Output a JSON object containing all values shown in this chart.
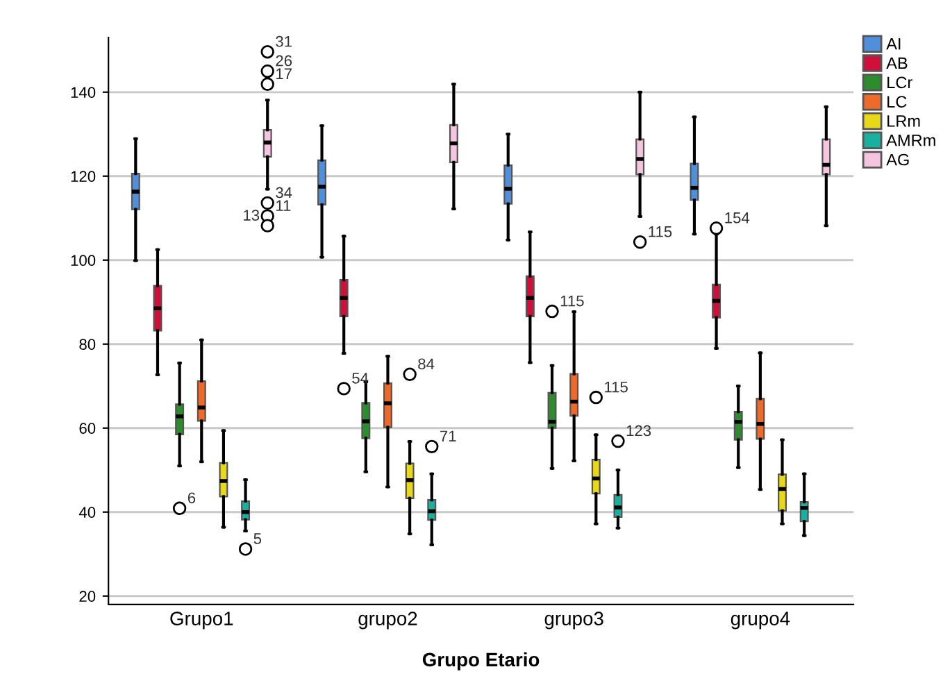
{
  "chart_data": {
    "type": "box",
    "xlabel": "Grupo Etario",
    "categories": [
      "Grupo1",
      "grupo2",
      "grupo3",
      "grupo4"
    ],
    "ylim": [
      18,
      153
    ],
    "yticks": [
      20,
      40,
      60,
      80,
      100,
      120,
      140
    ],
    "grid": "y",
    "legend": "top right",
    "series": [
      {
        "name": "AI",
        "color": "#4f8fdc",
        "boxes": [
          {
            "low": 99.9,
            "q1": 112.1,
            "median": 116.3,
            "q3": 120.6,
            "high": 128.9
          },
          {
            "low": 100.7,
            "q1": 113.2,
            "median": 117.5,
            "q3": 123.8,
            "high": 132.0
          },
          {
            "low": 104.8,
            "q1": 113.4,
            "median": 117.0,
            "q3": 122.6,
            "high": 130.0
          },
          {
            "low": 106.2,
            "q1": 114.3,
            "median": 117.2,
            "q3": 123.0,
            "high": 134.1
          }
        ]
      },
      {
        "name": "AB",
        "color": "#d0103a",
        "boxes": [
          {
            "low": 72.7,
            "q1": 83.2,
            "median": 88.5,
            "q3": 93.9,
            "high": 102.5
          },
          {
            "low": 77.8,
            "q1": 86.6,
            "median": 91.0,
            "q3": 95.3,
            "high": 105.7,
            "outliers": [
              69.4
            ]
          },
          {
            "low": 75.6,
            "q1": 86.6,
            "median": 91.0,
            "q3": 96.2,
            "high": 106.7
          },
          {
            "low": 79.0,
            "q1": 86.3,
            "median": 90.3,
            "q3": 94.2,
            "high": 106.2,
            "outliers": [
              107.6
            ]
          }
        ]
      },
      {
        "name": "LCr",
        "color": "#2e8b2e",
        "boxes": [
          {
            "low": 51.0,
            "q1": 58.5,
            "median": 62.8,
            "q3": 65.7,
            "high": 75.5,
            "outliers": [
              40.9
            ]
          },
          {
            "low": 49.6,
            "q1": 57.6,
            "median": 61.6,
            "q3": 66.0,
            "high": 71.0
          },
          {
            "low": 50.4,
            "q1": 60.0,
            "median": 61.5,
            "q3": 68.4,
            "high": 74.9,
            "outliers": [
              87.8
            ]
          },
          {
            "low": 50.6,
            "q1": 57.2,
            "median": 61.5,
            "q3": 63.9,
            "high": 70.0
          }
        ]
      },
      {
        "name": "LC",
        "color": "#ee6a2a",
        "boxes": [
          {
            "low": 52.0,
            "q1": 61.7,
            "median": 64.9,
            "q3": 71.2,
            "high": 81.0
          },
          {
            "low": 46.0,
            "q1": 60.2,
            "median": 65.9,
            "q3": 70.7,
            "high": 77.1
          },
          {
            "low": 52.2,
            "q1": 62.9,
            "median": 66.3,
            "q3": 72.9,
            "high": 87.7
          },
          {
            "low": 45.4,
            "q1": 57.4,
            "median": 61.0,
            "q3": 67.0,
            "high": 77.9
          }
        ]
      },
      {
        "name": "LRm",
        "color": "#e8d81a",
        "boxes": [
          {
            "low": 36.4,
            "q1": 43.7,
            "median": 47.4,
            "q3": 51.7,
            "high": 59.4
          },
          {
            "low": 34.8,
            "q1": 43.3,
            "median": 47.6,
            "q3": 51.6,
            "high": 56.8,
            "outliers": [
              72.8
            ]
          },
          {
            "low": 37.2,
            "q1": 44.4,
            "median": 48.0,
            "q3": 52.5,
            "high": 58.4,
            "outliers": [
              67.3
            ]
          },
          {
            "low": 37.2,
            "q1": 40.3,
            "median": 45.5,
            "q3": 49.0,
            "high": 57.2
          }
        ]
      },
      {
        "name": "AMRm",
        "color": "#1ab0a0",
        "boxes": [
          {
            "low": 35.5,
            "q1": 38.2,
            "median": 40.0,
            "q3": 42.6,
            "high": 47.7,
            "outliers": [
              31.2
            ]
          },
          {
            "low": 32.2,
            "q1": 38.1,
            "median": 40.2,
            "q3": 42.9,
            "high": 49.1,
            "outliers": [
              55.6
            ]
          },
          {
            "low": 36.2,
            "q1": 38.8,
            "median": 41.1,
            "q3": 44.1,
            "high": 50.0,
            "outliers": [
              56.9
            ]
          },
          {
            "low": 34.4,
            "q1": 37.8,
            "median": 41.0,
            "q3": 42.4,
            "high": 49.1
          }
        ]
      },
      {
        "name": "AG",
        "color": "#f7c4e0",
        "boxes": [
          {
            "low": 116.9,
            "q1": 124.6,
            "median": 128.0,
            "q3": 131.0,
            "high": 138.1,
            "outliers": [
              149.6,
              145.0,
              141.9,
              113.6,
              110.5,
              108.2
            ]
          },
          {
            "low": 112.2,
            "q1": 123.3,
            "median": 127.8,
            "q3": 132.2,
            "high": 141.9
          },
          {
            "low": 110.4,
            "q1": 120.4,
            "median": 124.1,
            "q3": 128.8,
            "high": 140.0,
            "outliers": [
              104.3
            ]
          },
          {
            "low": 108.2,
            "q1": 120.4,
            "median": 122.7,
            "q3": 128.8,
            "high": 136.5
          }
        ]
      }
    ],
    "annotations": [
      "54",
      "154",
      "6",
      "115",
      "84",
      "115",
      "5",
      "71",
      "123",
      "31",
      "26",
      "17",
      "34",
      "11",
      "13",
      "115"
    ]
  }
}
